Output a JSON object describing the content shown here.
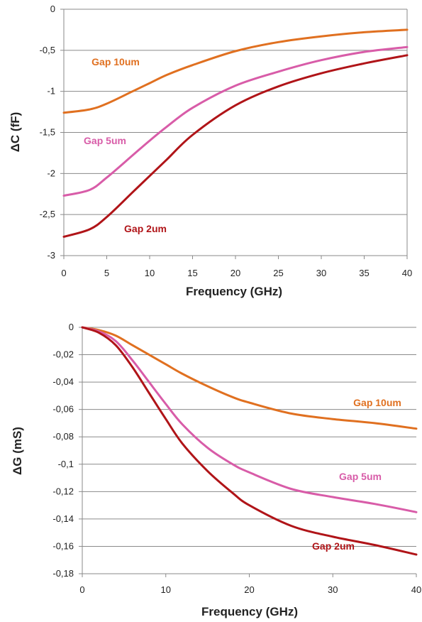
{
  "chart_data": [
    {
      "type": "line",
      "title": "",
      "xlabel": "Frequency (GHz)",
      "ylabel": "ΔC (fF)",
      "xlim": [
        0,
        40
      ],
      "ylim": [
        -3,
        0
      ],
      "x_ticks": [
        "0",
        "5",
        "10",
        "15",
        "20",
        "25",
        "30",
        "35",
        "40"
      ],
      "y_ticks": [
        "0",
        "-0,5",
        "-1",
        "-1,5",
        "-2",
        "-2,5",
        "-3"
      ],
      "grid": true,
      "legend": "inline labels",
      "series": [
        {
          "name": "Gap 10um",
          "color": "#E07020",
          "x": [
            0,
            3,
            5,
            8,
            10,
            12,
            15,
            20,
            25,
            30,
            35,
            40
          ],
          "y": [
            -1.26,
            -1.22,
            -1.15,
            -1.0,
            -0.9,
            -0.8,
            -0.68,
            -0.51,
            -0.4,
            -0.33,
            -0.28,
            -0.25
          ]
        },
        {
          "name": "Gap 5um",
          "color": "#D85CA8",
          "x": [
            0,
            3,
            5,
            8,
            10,
            12,
            15,
            20,
            25,
            30,
            35,
            40
          ],
          "y": [
            -2.27,
            -2.2,
            -2.05,
            -1.78,
            -1.6,
            -1.43,
            -1.2,
            -0.93,
            -0.76,
            -0.62,
            -0.52,
            -0.46
          ]
        },
        {
          "name": "Gap 2um",
          "color": "#B01418",
          "x": [
            0,
            3,
            5,
            8,
            10,
            12,
            15,
            20,
            25,
            30,
            35,
            40
          ],
          "y": [
            -2.77,
            -2.68,
            -2.53,
            -2.23,
            -2.03,
            -1.83,
            -1.53,
            -1.17,
            -0.94,
            -0.78,
            -0.66,
            -0.56
          ]
        }
      ]
    },
    {
      "type": "line",
      "title": "",
      "xlabel": "Frequency (GHz)",
      "ylabel": "ΔG (mS)",
      "xlim": [
        0,
        40
      ],
      "ylim": [
        -0.18,
        0
      ],
      "x_ticks": [
        "0",
        "10",
        "20",
        "30",
        "40"
      ],
      "y_ticks": [
        "0",
        "-0,02",
        "-0,04",
        "-0,06",
        "-0,08",
        "-0,1",
        "-0,12",
        "-0,14",
        "-0,16",
        "-0,18"
      ],
      "grid": true,
      "legend": "inline labels",
      "series": [
        {
          "name": "Gap 10um",
          "color": "#E07020",
          "x": [
            0,
            2,
            4,
            6,
            8,
            10,
            12,
            15,
            18,
            20,
            25,
            30,
            35,
            40
          ],
          "y": [
            0,
            -0.002,
            -0.006,
            -0.013,
            -0.02,
            -0.027,
            -0.034,
            -0.043,
            -0.051,
            -0.055,
            -0.063,
            -0.067,
            -0.07,
            -0.074
          ]
        },
        {
          "name": "Gap 5um",
          "color": "#D85CA8",
          "x": [
            0,
            2,
            4,
            6,
            8,
            10,
            12,
            15,
            18,
            20,
            25,
            30,
            35,
            40
          ],
          "y": [
            0,
            -0.003,
            -0.01,
            -0.024,
            -0.04,
            -0.056,
            -0.071,
            -0.088,
            -0.1,
            -0.106,
            -0.118,
            -0.124,
            -0.129,
            -0.135
          ]
        },
        {
          "name": "Gap 2um",
          "color": "#B01418",
          "x": [
            0,
            2,
            4,
            6,
            8,
            10,
            12,
            15,
            18,
            20,
            25,
            30,
            35,
            40
          ],
          "y": [
            0,
            -0.004,
            -0.013,
            -0.029,
            -0.048,
            -0.067,
            -0.085,
            -0.105,
            -0.121,
            -0.13,
            -0.145,
            -0.153,
            -0.159,
            -0.166
          ]
        }
      ]
    }
  ]
}
